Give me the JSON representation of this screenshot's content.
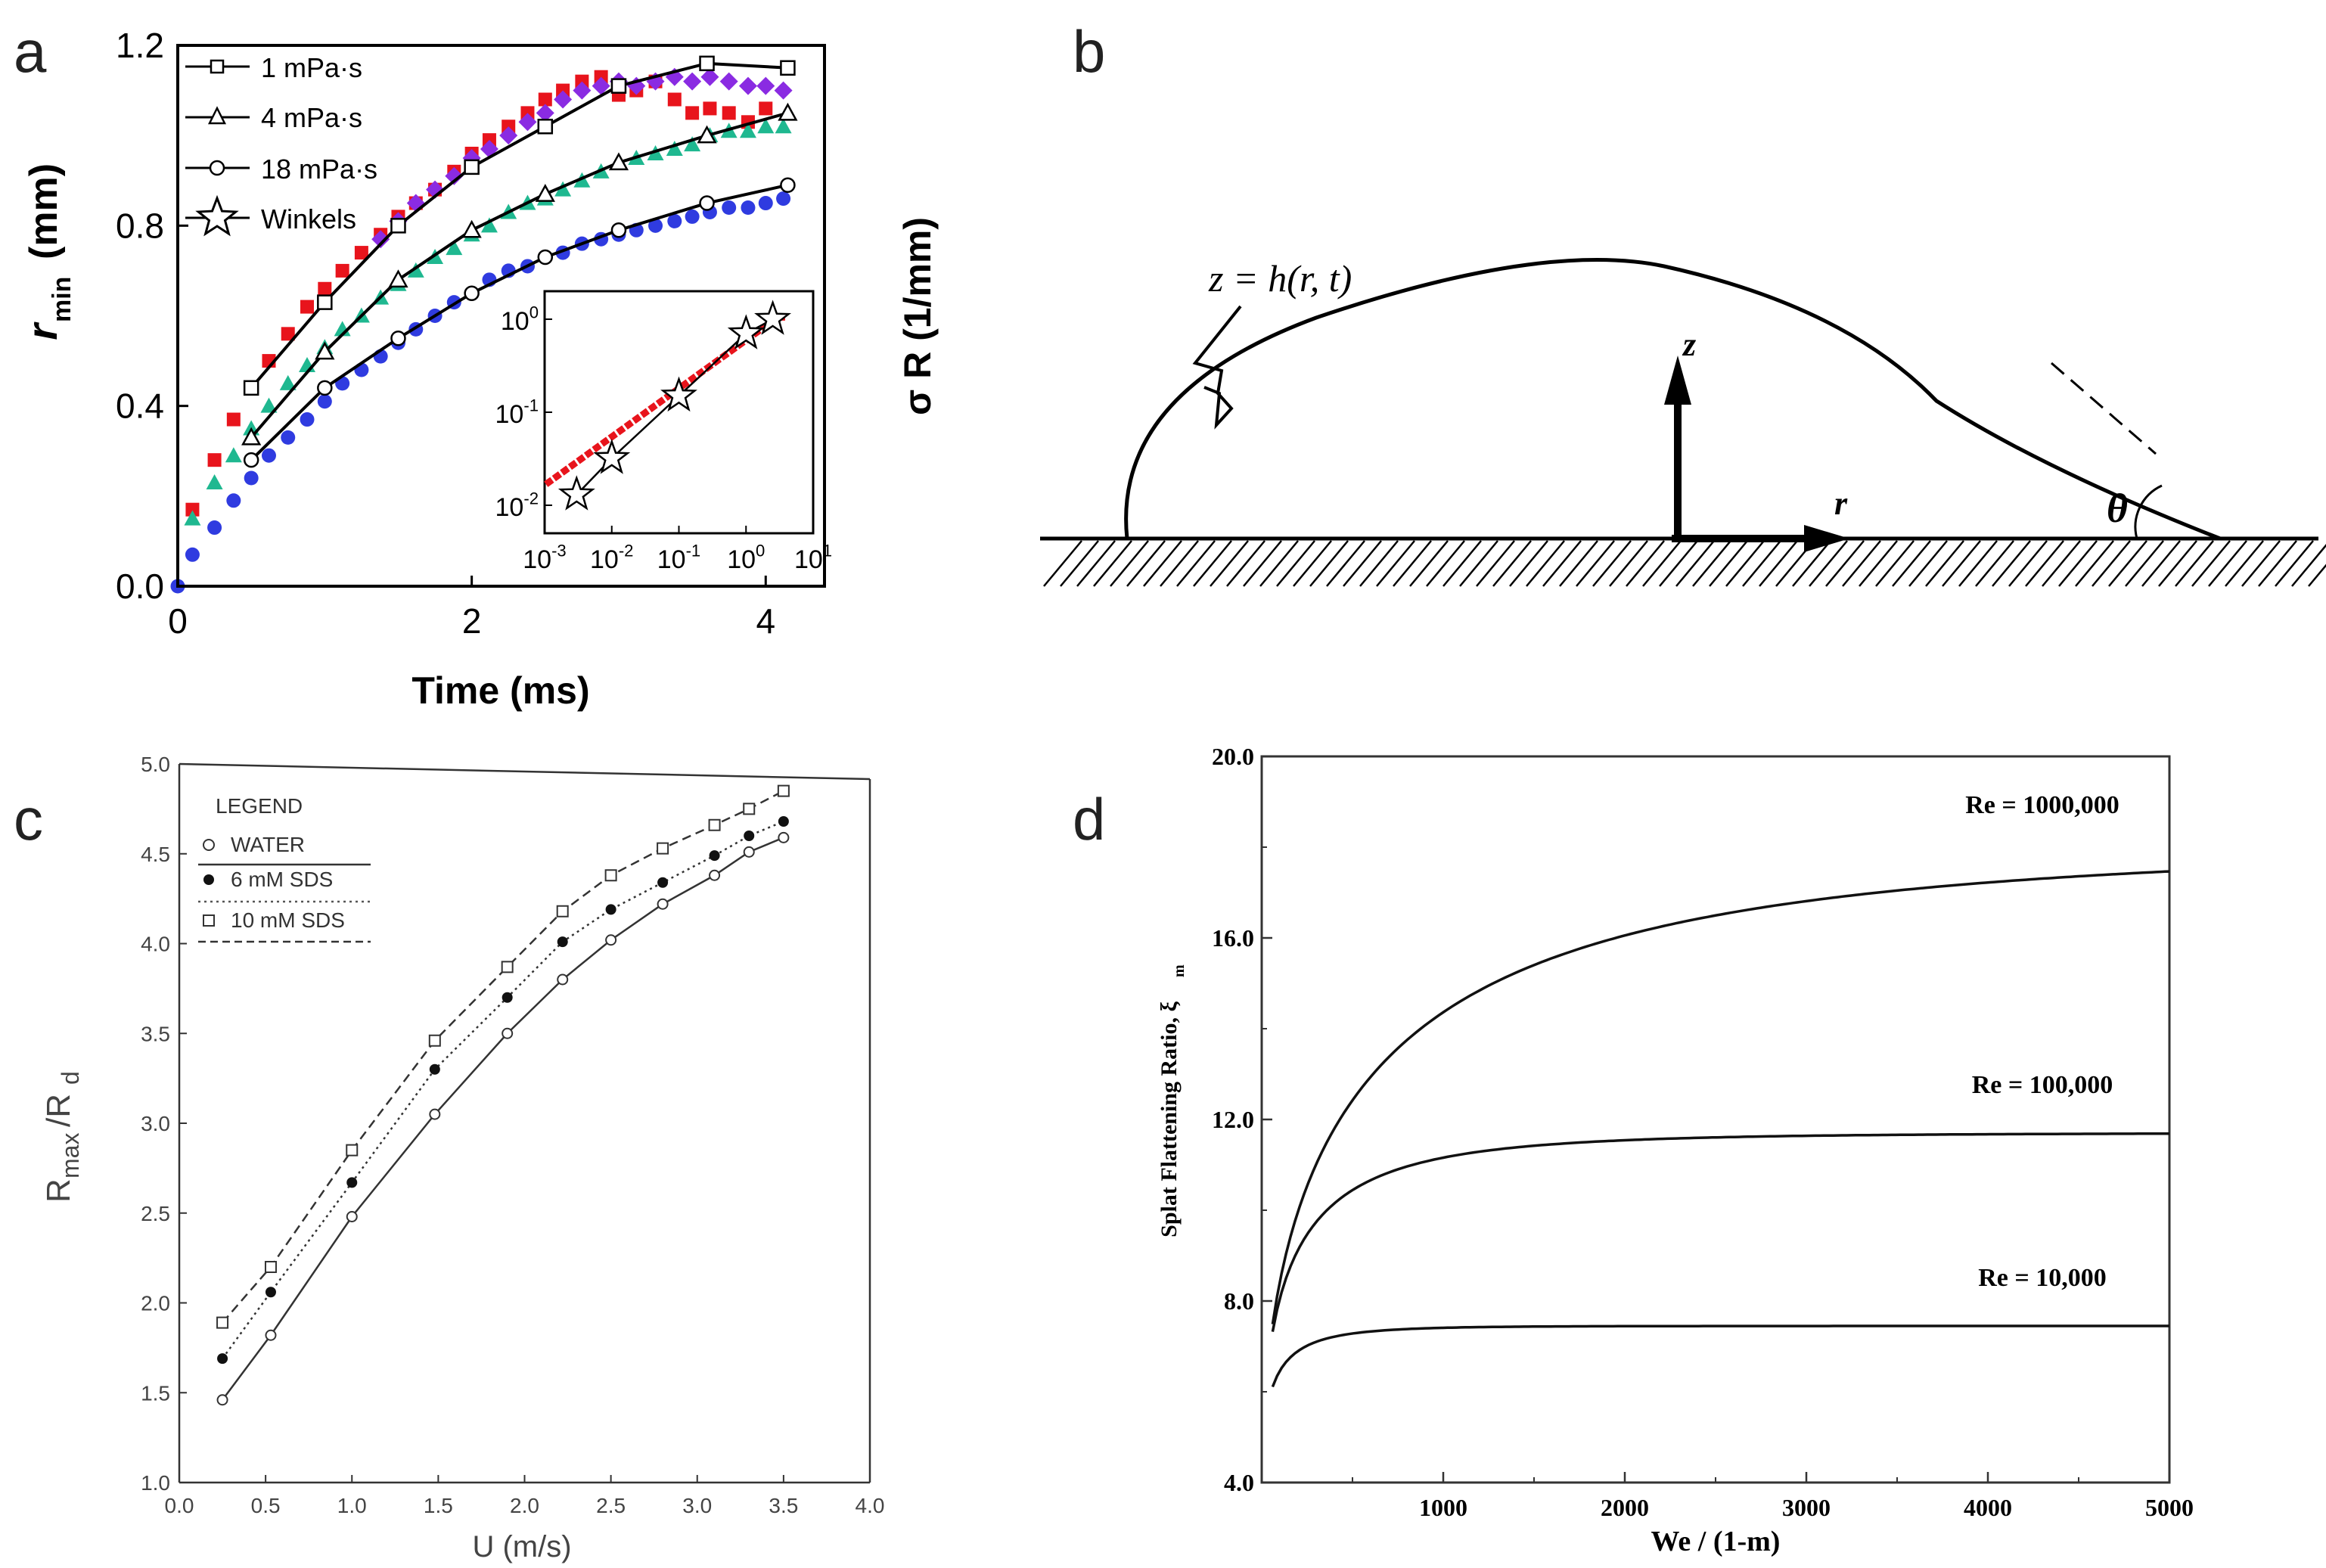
{
  "panels": {
    "a": "a",
    "b": "b",
    "c": "c",
    "d": "d"
  },
  "chart_data": [
    {
      "panel": "a",
      "type": "scatter",
      "xlabel": "Time (ms)",
      "ylabel_main": "r",
      "ylabel_sub": "min",
      "ylabel_unit": "(mm)",
      "ylabel_right": "σ R  (1/mm)",
      "xlim": [
        0,
        4.4
      ],
      "ylim": [
        0,
        1.2
      ],
      "xticks": [
        0,
        2,
        4
      ],
      "yticks": [
        0.0,
        0.4,
        0.8,
        1.2
      ],
      "ytick_labels": [
        "0.0",
        "0.4",
        "0.8",
        "1.2"
      ],
      "legend": [
        "1 mPa·s",
        "4 mPa·s",
        "18 mPa·s",
        "Winkels"
      ],
      "series": [
        {
          "name": "1 mPa·s",
          "marker": "square-open",
          "color": "#000000",
          "x": [
            0.5,
            1.0,
            1.5,
            2.0,
            2.5,
            3.0,
            3.6,
            4.15
          ],
          "y": [
            0.44,
            0.63,
            0.8,
            0.93,
            1.02,
            1.11,
            1.16,
            1.15
          ]
        },
        {
          "name": "4 mPa·s",
          "marker": "triangle-open",
          "color": "#000000",
          "x": [
            0.5,
            1.0,
            1.5,
            2.0,
            2.5,
            3.0,
            3.6,
            4.15
          ],
          "y": [
            0.33,
            0.52,
            0.68,
            0.79,
            0.87,
            0.94,
            1.0,
            1.05
          ]
        },
        {
          "name": "18 mPa·s",
          "marker": "circle-open",
          "color": "#000000",
          "x": [
            0.5,
            1.0,
            1.5,
            2.0,
            2.5,
            3.0,
            3.6,
            4.15
          ],
          "y": [
            0.28,
            0.44,
            0.55,
            0.65,
            0.73,
            0.79,
            0.85,
            0.89
          ]
        }
      ],
      "scatter_series": [
        {
          "color": "#e8141c",
          "marker": "square",
          "x": [
            0.1,
            0.25,
            0.38,
            0.5,
            0.62,
            0.75,
            0.88,
            1.0,
            1.12,
            1.25,
            1.38,
            1.5,
            1.62,
            1.75,
            1.88,
            2.0,
            2.12,
            2.25,
            2.38,
            2.5,
            2.62,
            2.75,
            2.88,
            3.0,
            3.12,
            3.25,
            3.38,
            3.5,
            3.62,
            3.75,
            3.88,
            4.0
          ],
          "y": [
            0.17,
            0.28,
            0.37,
            0.44,
            0.5,
            0.56,
            0.62,
            0.66,
            0.7,
            0.74,
            0.78,
            0.82,
            0.85,
            0.88,
            0.92,
            0.96,
            0.99,
            1.02,
            1.05,
            1.08,
            1.1,
            1.12,
            1.13,
            1.09,
            1.1,
            1.12,
            1.08,
            1.05,
            1.06,
            1.05,
            1.03,
            1.06
          ]
        },
        {
          "color": "#8a2be2",
          "marker": "diamond",
          "x": [
            1.38,
            1.5,
            1.62,
            1.75,
            1.88,
            2.0,
            2.12,
            2.25,
            2.38,
            2.5,
            2.62,
            2.75,
            2.88,
            3.0,
            3.12,
            3.25,
            3.38,
            3.5,
            3.62,
            3.75,
            3.88,
            4.0,
            4.12
          ],
          "y": [
            0.77,
            0.81,
            0.85,
            0.88,
            0.91,
            0.95,
            0.97,
            1.0,
            1.03,
            1.05,
            1.08,
            1.1,
            1.11,
            1.12,
            1.11,
            1.12,
            1.13,
            1.12,
            1.13,
            1.12,
            1.11,
            1.11,
            1.1
          ]
        },
        {
          "color": "#1fb890",
          "marker": "triangle",
          "x": [
            0.1,
            0.25,
            0.38,
            0.5,
            0.62,
            0.75,
            0.88,
            1.0,
            1.12,
            1.25,
            1.38,
            1.5,
            1.62,
            1.75,
            1.88,
            2.0,
            2.12,
            2.25,
            2.38,
            2.5,
            2.62,
            2.75,
            2.88,
            3.0,
            3.12,
            3.25,
            3.38,
            3.5,
            3.62,
            3.75,
            3.88,
            4.0,
            4.12
          ],
          "y": [
            0.15,
            0.23,
            0.29,
            0.35,
            0.4,
            0.45,
            0.49,
            0.53,
            0.57,
            0.6,
            0.64,
            0.67,
            0.7,
            0.73,
            0.75,
            0.78,
            0.8,
            0.83,
            0.85,
            0.86,
            0.88,
            0.9,
            0.92,
            0.94,
            0.95,
            0.96,
            0.97,
            0.98,
            1.0,
            1.01,
            1.01,
            1.02,
            1.02
          ]
        },
        {
          "color": "#2f3be0",
          "marker": "circle",
          "x": [
            0.0,
            0.1,
            0.25,
            0.38,
            0.5,
            0.62,
            0.75,
            0.88,
            1.0,
            1.12,
            1.25,
            1.38,
            1.5,
            1.62,
            1.75,
            1.88,
            2.0,
            2.12,
            2.25,
            2.38,
            2.5,
            2.62,
            2.75,
            2.88,
            3.0,
            3.12,
            3.25,
            3.38,
            3.5,
            3.62,
            3.75,
            3.88,
            4.0,
            4.12
          ],
          "y": [
            0.0,
            0.07,
            0.13,
            0.19,
            0.24,
            0.29,
            0.33,
            0.37,
            0.41,
            0.45,
            0.48,
            0.51,
            0.54,
            0.57,
            0.6,
            0.63,
            0.65,
            0.68,
            0.7,
            0.71,
            0.73,
            0.74,
            0.76,
            0.77,
            0.78,
            0.79,
            0.8,
            0.81,
            0.82,
            0.83,
            0.84,
            0.84,
            0.85,
            0.86
          ]
        }
      ],
      "inset": {
        "xscale": "log",
        "yscale": "log",
        "xticks": [
          "10^-3",
          "10^-2",
          "10^-1",
          "10^0",
          "10^1"
        ],
        "yticks": [
          "10^-2",
          "10^-1",
          "10^0"
        ],
        "xlim": [
          0.001,
          10
        ],
        "ylim": [
          0.005,
          2
        ],
        "stars_x": [
          0.003,
          0.01,
          0.1,
          1.0,
          2.5
        ],
        "stars_y": [
          0.013,
          0.032,
          0.15,
          0.7,
          1.0
        ]
      }
    },
    {
      "panel": "b",
      "type": "diagram",
      "curve_label": "z = h(r, t)",
      "axis_z": "z",
      "axis_r": "r",
      "angle": "θ"
    },
    {
      "panel": "c",
      "type": "line",
      "xlabel": "U (m/s)",
      "ylabel": "R",
      "ylabel_sub1": "max",
      "ylabel_mid": "/R",
      "ylabel_sub2": "d",
      "xlim": [
        0,
        4.0
      ],
      "ylim": [
        1.0,
        5.0
      ],
      "xticks": [
        "0.0",
        "0.5",
        "1.0",
        "1.5",
        "2.0",
        "2.5",
        "3.0",
        "3.5",
        "4.0"
      ],
      "yticks": [
        "1.0",
        "1.5",
        "2.0",
        "2.5",
        "3.0",
        "3.5",
        "4.0",
        "4.5",
        "5.0"
      ],
      "legend_title": "LEGEND",
      "series": [
        {
          "name": "WATER",
          "marker": "circle-open",
          "dash": "solid",
          "x": [
            0.25,
            0.53,
            1.0,
            1.48,
            1.9,
            2.22,
            2.5,
            2.8,
            3.1,
            3.3,
            3.5
          ],
          "y": [
            1.46,
            1.82,
            2.48,
            3.05,
            3.5,
            3.8,
            4.02,
            4.22,
            4.38,
            4.51,
            4.59
          ]
        },
        {
          "name": "6 mM SDS",
          "marker": "circle-filled",
          "dash": "dotted",
          "x": [
            0.25,
            0.53,
            1.0,
            1.48,
            1.9,
            2.22,
            2.5,
            2.8,
            3.1,
            3.3,
            3.5
          ],
          "y": [
            1.69,
            2.06,
            2.67,
            3.3,
            3.7,
            4.01,
            4.19,
            4.34,
            4.49,
            4.6,
            4.68
          ]
        },
        {
          "name": "10 mM SDS",
          "marker": "square-open",
          "dash": "dashed",
          "x": [
            0.25,
            0.53,
            1.0,
            1.48,
            1.9,
            2.22,
            2.5,
            2.8,
            3.1,
            3.3,
            3.5
          ],
          "y": [
            1.89,
            2.2,
            2.85,
            3.46,
            3.87,
            4.18,
            4.38,
            4.53,
            4.66,
            4.75,
            4.85
          ]
        }
      ]
    },
    {
      "panel": "d",
      "type": "line",
      "xlabel": "We / (1-m)",
      "ylabel": "Splat Flattening Ratio, ξ",
      "ylabel_sub": "m",
      "xlim": [
        0,
        5000
      ],
      "ylim": [
        4.0,
        20.0
      ],
      "xticks": [
        "1000",
        "2000",
        "3000",
        "4000",
        "5000"
      ],
      "yticks": [
        "4.0",
        "8.0",
        "12.0",
        "16.0",
        "20.0"
      ],
      "series": [
        {
          "name": "Re = 1000,000",
          "asymptote": 18.0,
          "k": 480
        },
        {
          "name": "Re = 100,000",
          "asymptote": 11.7,
          "k": 140
        },
        {
          "name": "Re = 10,000",
          "asymptote": 7.45,
          "k": 55
        }
      ]
    }
  ]
}
